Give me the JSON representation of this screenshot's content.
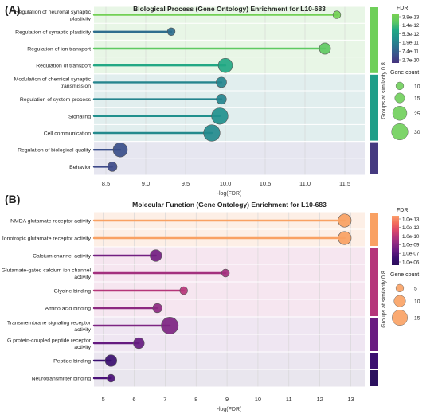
{
  "panels": [
    {
      "letter": "(A)"
    },
    {
      "letter": "(B)"
    }
  ],
  "chart_data": [
    {
      "type": "lollipop",
      "title": "Biological Process (Gene Ontology) Enrichment for L10-683",
      "xlabel": "-log(FDR)",
      "xlim": [
        8.35,
        11.75
      ],
      "xticks": [
        "8.5",
        "9.0",
        "9.5",
        "10.0",
        "10.5",
        "11.0",
        "11.5"
      ],
      "xtick_values": [
        8.5,
        9.0,
        9.5,
        10.0,
        10.5,
        11.0,
        11.5
      ],
      "grid": true,
      "side_label": "Groups at similarity 0.8",
      "group_colors": [
        "#6fcf5a",
        "#1f9e89",
        "#453a80"
      ],
      "group_bg": [
        "#e8f6e6",
        "#e1eeee",
        "#e6e6f0"
      ],
      "categories": [
        {
          "label": "Regulation of neuronal synaptic plasticity",
          "value": 11.4,
          "count": 10,
          "color": "#73d055",
          "group": 0
        },
        {
          "label": "Regulation of synaptic plasticity",
          "value": 9.32,
          "count": 10,
          "color": "#2e6e8e",
          "group": 0
        },
        {
          "label": "Regulation of ion transport",
          "value": 11.25,
          "count": 18,
          "color": "#5ec962",
          "group": 0
        },
        {
          "label": "Regulation of transport",
          "value": 10.0,
          "count": 25,
          "color": "#22a884",
          "group": 0
        },
        {
          "label": "Modulation of chemical synaptic transmission",
          "value": 9.95,
          "count": 16,
          "color": "#25858e",
          "group": 1
        },
        {
          "label": "Regulation of system process",
          "value": 9.95,
          "count": 15,
          "color": "#25848e",
          "group": 1
        },
        {
          "label": "Signaling",
          "value": 9.93,
          "count": 30,
          "color": "#21908d",
          "group": 1
        },
        {
          "label": "Cell communication",
          "value": 9.83,
          "count": 30,
          "color": "#238a8d",
          "group": 1
        },
        {
          "label": "Regulation of biological quality",
          "value": 8.68,
          "count": 25,
          "color": "#3b4f8a",
          "group": 2
        },
        {
          "label": "Behavior",
          "value": 8.58,
          "count": 14,
          "color": "#3e4a89",
          "group": 2
        }
      ],
      "group_bands": [
        [
          0,
          3
        ],
        [
          4,
          7
        ],
        [
          8,
          9
        ]
      ],
      "legend": {
        "fdr_title": "FDR",
        "fdr_labels": [
          "3.8e-13",
          "1.4e-12",
          "5.3e-12",
          "1.9e-11",
          "7.4e-11",
          "2.7e-10"
        ],
        "fdr_gradient": [
          "#7ad151",
          "#5ec962",
          "#22a884",
          "#21908d",
          "#2c728e",
          "#3b528b",
          "#46327e"
        ],
        "size_title": "Gene count",
        "sizes": [
          10,
          15,
          25,
          30
        ],
        "size_color": "#6fcf5a"
      }
    },
    {
      "type": "lollipop",
      "title": "Molecular Function (Gene Ontology) Enrichment for L10-683",
      "xlabel": "-log(FDR)",
      "xlim": [
        4.7,
        13.45
      ],
      "xticks": [
        "5",
        "6",
        "7",
        "8",
        "9",
        "10",
        "11",
        "12",
        "13"
      ],
      "xtick_values": [
        5,
        6,
        7,
        8,
        9,
        10,
        11,
        12,
        13
      ],
      "grid": true,
      "side_label": "Groups at similarity 0.8",
      "group_colors": [
        "#f9a163",
        "#b5367a",
        "#6a1c81",
        "#3b0f70",
        "#2c115f"
      ],
      "group_bg": [
        "#fdefe6",
        "#f6e6f0",
        "#efe6f2",
        "#ebe6f0",
        "#e9e6ee"
      ],
      "categories": [
        {
          "label": "NMDA glutamate receptor activity",
          "value": 12.8,
          "count": 12,
          "color": "#f9a163",
          "group": 0
        },
        {
          "label": "Ionotropic glutamate receptor activity",
          "value": 12.8,
          "count": 12,
          "color": "#f9a163",
          "group": 0
        },
        {
          "label": "Calcium channel activity",
          "value": 6.7,
          "count": 10,
          "color": "#721f81",
          "group": 1
        },
        {
          "label": "Glutamate-gated calcium ion channel activity",
          "value": 8.95,
          "count": 5,
          "color": "#a3307e",
          "group": 1
        },
        {
          "label": "Glycine binding",
          "value": 7.6,
          "count": 5,
          "color": "#b5367a",
          "group": 1
        },
        {
          "label": "Amino acid binding",
          "value": 6.75,
          "count": 7,
          "color": "#8c2981",
          "group": 1
        },
        {
          "label": "Transmembrane signaling receptor activity",
          "value": 7.15,
          "count": 17,
          "color": "#7d2482",
          "group": 2
        },
        {
          "label": "G protein-coupled peptide receptor activity",
          "value": 6.15,
          "count": 9,
          "color": "#651a80",
          "group": 2
        },
        {
          "label": "Peptide binding",
          "value": 5.25,
          "count": 10,
          "color": "#3b0f70",
          "group": 3
        },
        {
          "label": "Neurotransmitter binding",
          "value": 5.25,
          "count": 5,
          "color": "#4a1078",
          "group": 4
        }
      ],
      "group_bands": [
        [
          0,
          1
        ],
        [
          2,
          5
        ],
        [
          6,
          7
        ],
        [
          8,
          8
        ],
        [
          9,
          9
        ]
      ],
      "legend": {
        "fdr_title": "FDR",
        "fdr_labels": [
          "1.0e-13",
          "1.0e-12",
          "1.0e-10",
          "1.0e-09",
          "1.0e-07",
          "1.0e-06"
        ],
        "fdr_gradient": [
          "#fca06c",
          "#f36e5c",
          "#de4968",
          "#b5367a",
          "#8c2981",
          "#641a80",
          "#3b0f70",
          "#2a0d5a"
        ],
        "size_title": "Gene count",
        "sizes": [
          5,
          10,
          15
        ],
        "size_color": "#f9a163"
      }
    }
  ]
}
